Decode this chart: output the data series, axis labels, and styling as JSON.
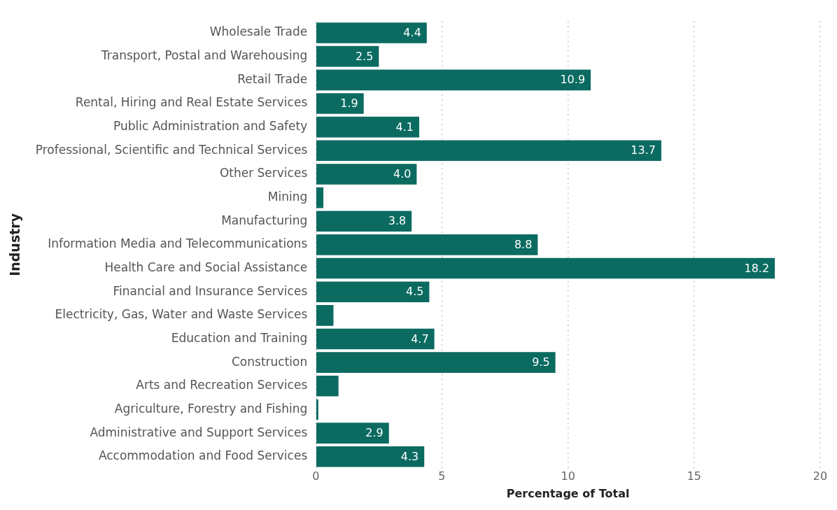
{
  "chart_data": {
    "type": "bar",
    "orientation": "horizontal",
    "xlabel": "Percentage of Total",
    "ylabel": "Industry",
    "categories": [
      "Wholesale Trade",
      "Transport, Postal and Warehousing",
      "Retail Trade",
      "Rental, Hiring and Real Estate Services",
      "Public Administration and Safety",
      "Professional, Scientific and Technical Services",
      "Other Services",
      "Mining",
      "Manufacturing",
      "Information Media and Telecommunications",
      "Health Care and Social Assistance",
      "Financial and Insurance Services",
      "Electricity, Gas, Water and Waste Services",
      "Education and Training",
      "Construction",
      "Arts and Recreation Services",
      "Agriculture, Forestry and Fishing",
      "Administrative and Support Services",
      "Accommodation and Food Services"
    ],
    "values": [
      4.4,
      2.5,
      10.9,
      1.9,
      4.1,
      13.7,
      4.0,
      0.3,
      3.8,
      8.8,
      18.2,
      4.5,
      0.7,
      4.7,
      9.5,
      0.9,
      0.1,
      2.9,
      4.3
    ],
    "value_labels": [
      "4.4",
      "2.5",
      "10.9",
      "1.9",
      "4.1",
      "13.7",
      "4.0",
      null,
      "3.8",
      "8.8",
      "18.2",
      "4.5",
      null,
      "4.7",
      "9.5",
      null,
      null,
      "2.9",
      "4.3"
    ],
    "color": "#0b6b61",
    "xlim": [
      0,
      20
    ],
    "xticks": [
      0,
      5,
      10,
      15,
      20
    ],
    "grid": "x",
    "legend": false
  }
}
